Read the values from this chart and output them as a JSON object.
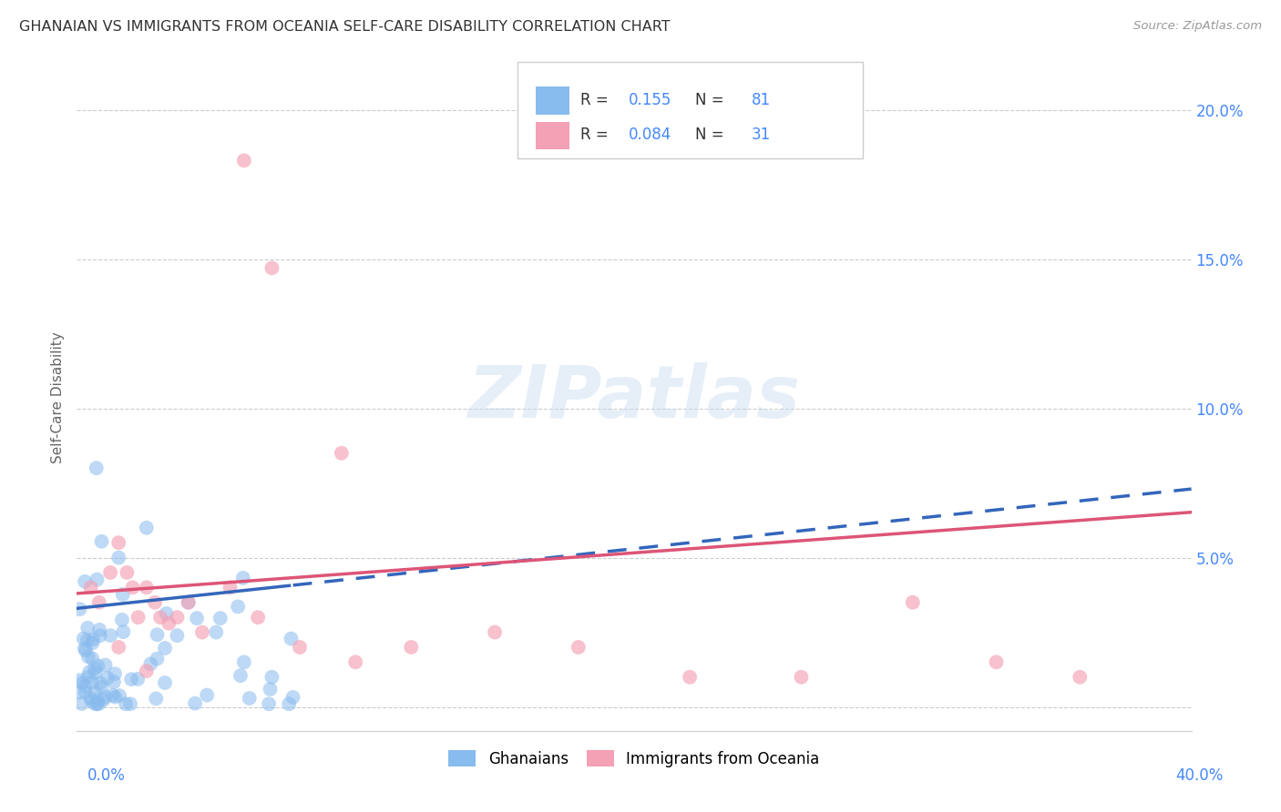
{
  "title": "GHANAIAN VS IMMIGRANTS FROM OCEANIA SELF-CARE DISABILITY CORRELATION CHART",
  "source": "Source: ZipAtlas.com",
  "ylabel": "Self-Care Disability",
  "xlim": [
    0.0,
    0.4
  ],
  "ylim": [
    -0.008,
    0.215
  ],
  "yticks": [
    0.0,
    0.05,
    0.1,
    0.15,
    0.2
  ],
  "ytick_labels": [
    "",
    "5.0%",
    "10.0%",
    "15.0%",
    "20.0%"
  ],
  "background_color": "#ffffff",
  "blue_color": "#88bbee",
  "pink_color": "#f4a0b5",
  "blue_line_color": "#3366bb",
  "pink_line_color": "#dd5577",
  "grid_color": "#cccccc",
  "axis_color": "#4488ff",
  "title_color": "#333333",
  "source_color": "#999999"
}
